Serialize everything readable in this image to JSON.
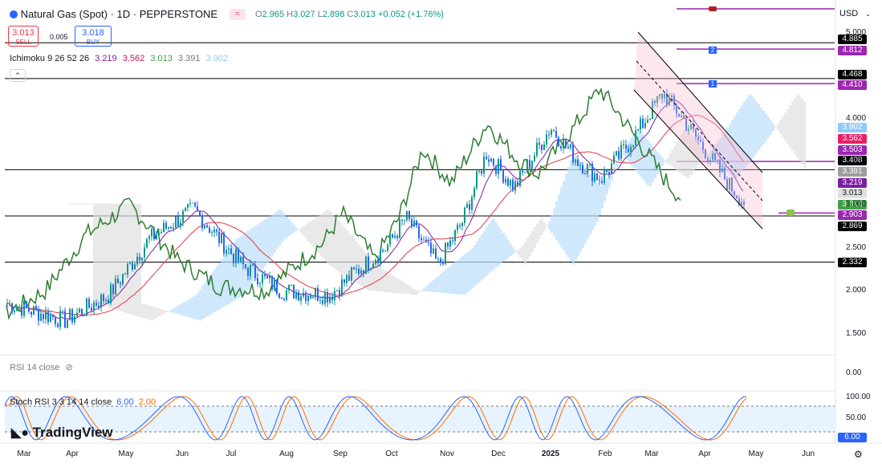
{
  "header": {
    "title": "Natural Gas (Spot) · 1D · PEPPERSTONE",
    "open_label": "O",
    "open": "2.965",
    "high_label": "H",
    "high": "3.027",
    "low_label": "L",
    "low": "2.898",
    "close_label": "C",
    "close": "3.013",
    "change": "+0.052 (+1.76%)",
    "sell_price": "3.013",
    "sell_label": "SELL",
    "spread": "0.005",
    "buy_price": "3.018",
    "buy_label": "BUY",
    "currency": "USD"
  },
  "indicators": {
    "ichimoku_label": "Ichimoku 9 26 52 26",
    "ichimoku_values": [
      "3.219",
      "3.562",
      "3.013",
      "3.391",
      "3.902"
    ],
    "ichimoku_colors": [
      "#7b1fa2",
      "#c2185b",
      "#43a047",
      "#757575",
      "#90caf9"
    ],
    "rsi_label": "RSI 14 close",
    "stoch_label": "Stoch RSI 3 3 14 14 close",
    "stoch_k": "6.00",
    "stoch_d": "2.00"
  },
  "branding": {
    "logo_text": "TradingView"
  },
  "axis": {
    "price_ticks": [
      "5.000",
      "4.000",
      "3.500",
      "3.000",
      "2.500",
      "2.000",
      "1.500"
    ],
    "rsi_ticks": [
      "0.00"
    ],
    "stoch_ticks": [
      "100.00",
      "50.00",
      "0.00"
    ],
    "time_ticks": [
      "Mar",
      "Apr",
      "May",
      "Jun",
      "Jul",
      "Aug",
      "Sep",
      "Oct",
      "Nov",
      "Dec",
      "2025",
      "Feb",
      "Mar",
      "Apr",
      "May",
      "Jun"
    ]
  },
  "price_tags": [
    {
      "value": "4.885",
      "bg": "#000000"
    },
    {
      "value": "4.812",
      "bg": "#9c27b0"
    },
    {
      "value": "4.468",
      "bg": "#000000"
    },
    {
      "value": "4.410",
      "bg": "#9c27b0"
    },
    {
      "value": "3.902",
      "bg": "#90caf9"
    },
    {
      "value": "3.562",
      "bg": "#e91e63"
    },
    {
      "value": "3.503",
      "bg": "#9c27b0"
    },
    {
      "value": "3.408",
      "bg": "#000000"
    },
    {
      "value": "3.391",
      "bg": "#9e9e9e"
    },
    {
      "value": "3.219",
      "bg": "#7b1fa2"
    },
    {
      "value": "3.013",
      "bg": "#e0e0e0"
    },
    {
      "value": "3.013",
      "bg": "#43a047"
    },
    {
      "value": "2.903",
      "bg": "#9c27b0"
    },
    {
      "value": "2.869",
      "bg": "#000000"
    },
    {
      "value": "2.332",
      "bg": "#000000"
    }
  ],
  "stoch_tag": {
    "value": "6.00",
    "bg": "#2962ff"
  },
  "annotations": [
    "2",
    "1"
  ],
  "colors": {
    "up": "#089981",
    "down": "#2962ff",
    "tenkan": "#7b1fa2",
    "kijun": "#e53946",
    "chikou": "#2e7d32",
    "cloud_bull": "#bbdefb",
    "cloud_bear": "#e0e0e0",
    "stoch_k": "#2962ff",
    "stoch_d": "#ff6d00"
  },
  "chart_data": {
    "type": "candlestick",
    "title": "Natural Gas (Spot) · 1D · PEPPERSTONE",
    "price_range": [
      1.2,
      5.05
    ],
    "horizontal_levels": [
      4.885,
      4.468,
      3.408,
      2.869,
      2.332
    ],
    "purple_levels": [
      4.812,
      4.41,
      3.503,
      2.903
    ],
    "close_path": [
      [
        "Mar",
        1.85
      ],
      [
        "Apr",
        1.65
      ],
      [
        "May",
        1.95
      ],
      [
        "May",
        2.6
      ],
      [
        "Jun",
        2.95
      ],
      [
        "Jul",
        2.3
      ],
      [
        "Aug",
        2.0
      ],
      [
        "Sep",
        1.95
      ],
      [
        "Sep",
        2.2
      ],
      [
        "Oct",
        2.5
      ],
      [
        "Oct",
        2.85
      ],
      [
        "Nov",
        2.3
      ],
      [
        "Nov",
        2.8
      ],
      [
        "Dec",
        3.6
      ],
      [
        "Dec",
        3.2
      ],
      [
        "2025",
        3.9
      ],
      [
        "2025",
        3.5
      ],
      [
        "Feb",
        3.3
      ],
      [
        "Feb",
        3.8
      ],
      [
        "Mar",
        4.3
      ],
      [
        "Mar",
        4.0
      ],
      [
        "Apr",
        3.6
      ],
      [
        "Apr",
        3.2
      ],
      [
        "Apr",
        3.013
      ]
    ]
  }
}
